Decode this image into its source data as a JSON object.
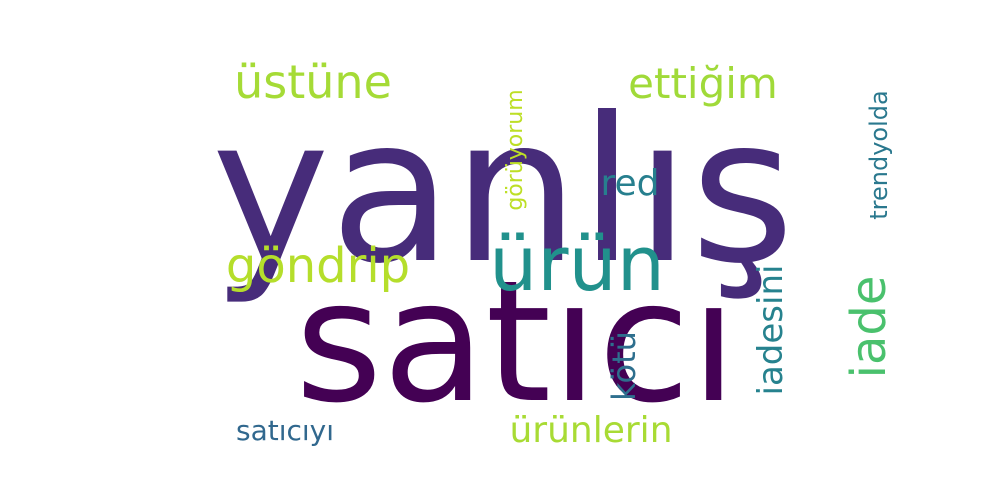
{
  "words": [
    {
      "text": "yanlış",
      "color": "#472c7a"
    },
    {
      "text": "satıcı",
      "color": "#440154"
    },
    {
      "text": "ürün",
      "color": "#21918c"
    },
    {
      "text": "üstüne",
      "color": "#a5db36"
    },
    {
      "text": "ettiğim",
      "color": "#a0da39"
    },
    {
      "text": "göndrip",
      "color": "#b5de2b"
    },
    {
      "text": "red",
      "color": "#277f8e"
    },
    {
      "text": "görüyorum",
      "color": "#bddf26"
    },
    {
      "text": "trendyolda",
      "color": "#2a788e"
    },
    {
      "text": "iade",
      "color": "#4ac16d"
    },
    {
      "text": "iadesini",
      "color": "#26828e"
    },
    {
      "text": "kötü",
      "color": "#2e6f8e"
    },
    {
      "text": "satıcıyı",
      "color": "#31688e"
    },
    {
      "text": "ürünlerin",
      "color": "#a8db34"
    }
  ]
}
